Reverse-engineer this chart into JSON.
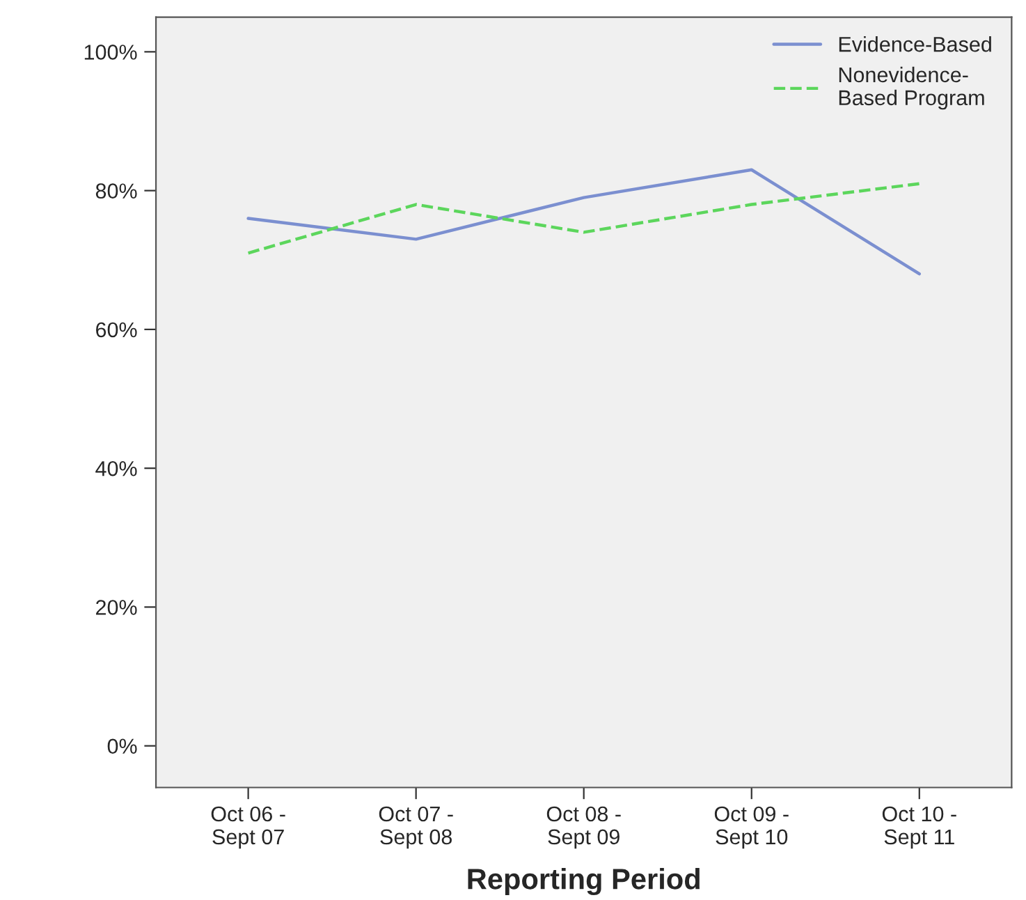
{
  "chart_data": {
    "type": "line",
    "xlabel": "Reporting Period",
    "categories": [
      "Oct 06 -\nSept 07",
      "Oct 07 -\nSept 08",
      "Oct 08 -\nSept 09",
      "Oct 09 -\nSept 10",
      "Oct 10 -\nSept 11"
    ],
    "series": [
      {
        "name": "Evidence-Based",
        "color": "#7b8fd0",
        "line_style": "solid",
        "values": [
          76,
          73,
          79,
          83,
          68
        ]
      },
      {
        "name": "Nonevidence-\nBased Program",
        "color": "#5cd65c",
        "line_style": "dashed",
        "values": [
          71,
          78,
          74,
          78,
          81
        ]
      }
    ],
    "ylim": [
      -6,
      105
    ],
    "yticks": [
      {
        "value": 0,
        "label": "0%"
      },
      {
        "value": 20,
        "label": "20%"
      },
      {
        "value": 40,
        "label": "40%"
      },
      {
        "value": 60,
        "label": "60%"
      },
      {
        "value": 80,
        "label": "80%"
      },
      {
        "value": 100,
        "label": "100%"
      }
    ],
    "grid": false,
    "legend": "top right",
    "marker": "none"
  }
}
